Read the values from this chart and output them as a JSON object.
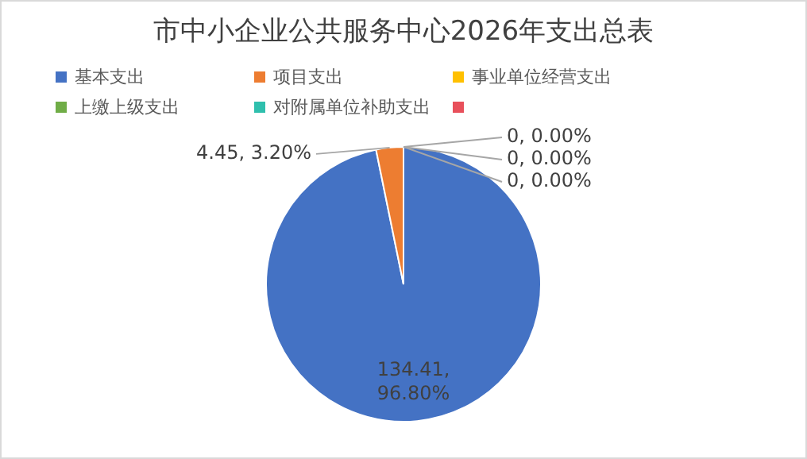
{
  "chart_data": {
    "type": "pie",
    "title": "市中小企业公共服务中心2026年支出总表",
    "categories": [
      "基本支出",
      "项目支出",
      "事业单位经营支出",
      "上缴上级支出",
      "对附属单位补助支出",
      null
    ],
    "values": [
      134.41,
      4.45,
      0,
      0,
      0,
      null
    ],
    "colors": [
      "#4472c4",
      "#ed7d31",
      "#ffc000",
      "#70ad47",
      "#2fbfad",
      "#e8505b"
    ],
    "value_labels": [
      "134.41, 96.80%",
      "4.45, 3.20%",
      "0, 0.00%",
      "0, 0.00%",
      "0, 0.00%",
      null
    ],
    "legend": "top"
  }
}
